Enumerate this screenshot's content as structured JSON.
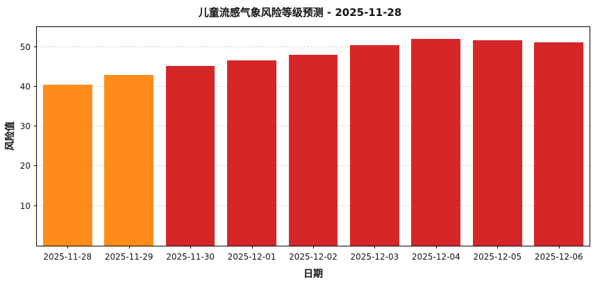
{
  "chart_data": {
    "type": "bar",
    "title": "儿童流感气象风险等级预测 - 2025-11-28",
    "xlabel": "日期",
    "ylabel": "风险值",
    "categories": [
      "2025-11-28",
      "2025-11-29",
      "2025-11-30",
      "2025-12-01",
      "2025-12-02",
      "2025-12-03",
      "2025-12-04",
      "2025-12-05",
      "2025-12-06"
    ],
    "values": [
      40.5,
      43.0,
      45.2,
      46.6,
      48.0,
      50.5,
      52.0,
      51.7,
      51.2
    ],
    "bar_colors": [
      "#ff8c1a",
      "#ff8c1a",
      "#d62728",
      "#d62728",
      "#d62728",
      "#d62728",
      "#d62728",
      "#d62728",
      "#d62728"
    ],
    "accent_colors": {
      "orange_risk": "#ff8c1a",
      "red_risk": "#d62728"
    },
    "yticks": [
      10,
      20,
      30,
      40,
      50
    ],
    "ylim": [
      0,
      55
    ],
    "grid": "horizontal-dashed",
    "legend": "none"
  }
}
